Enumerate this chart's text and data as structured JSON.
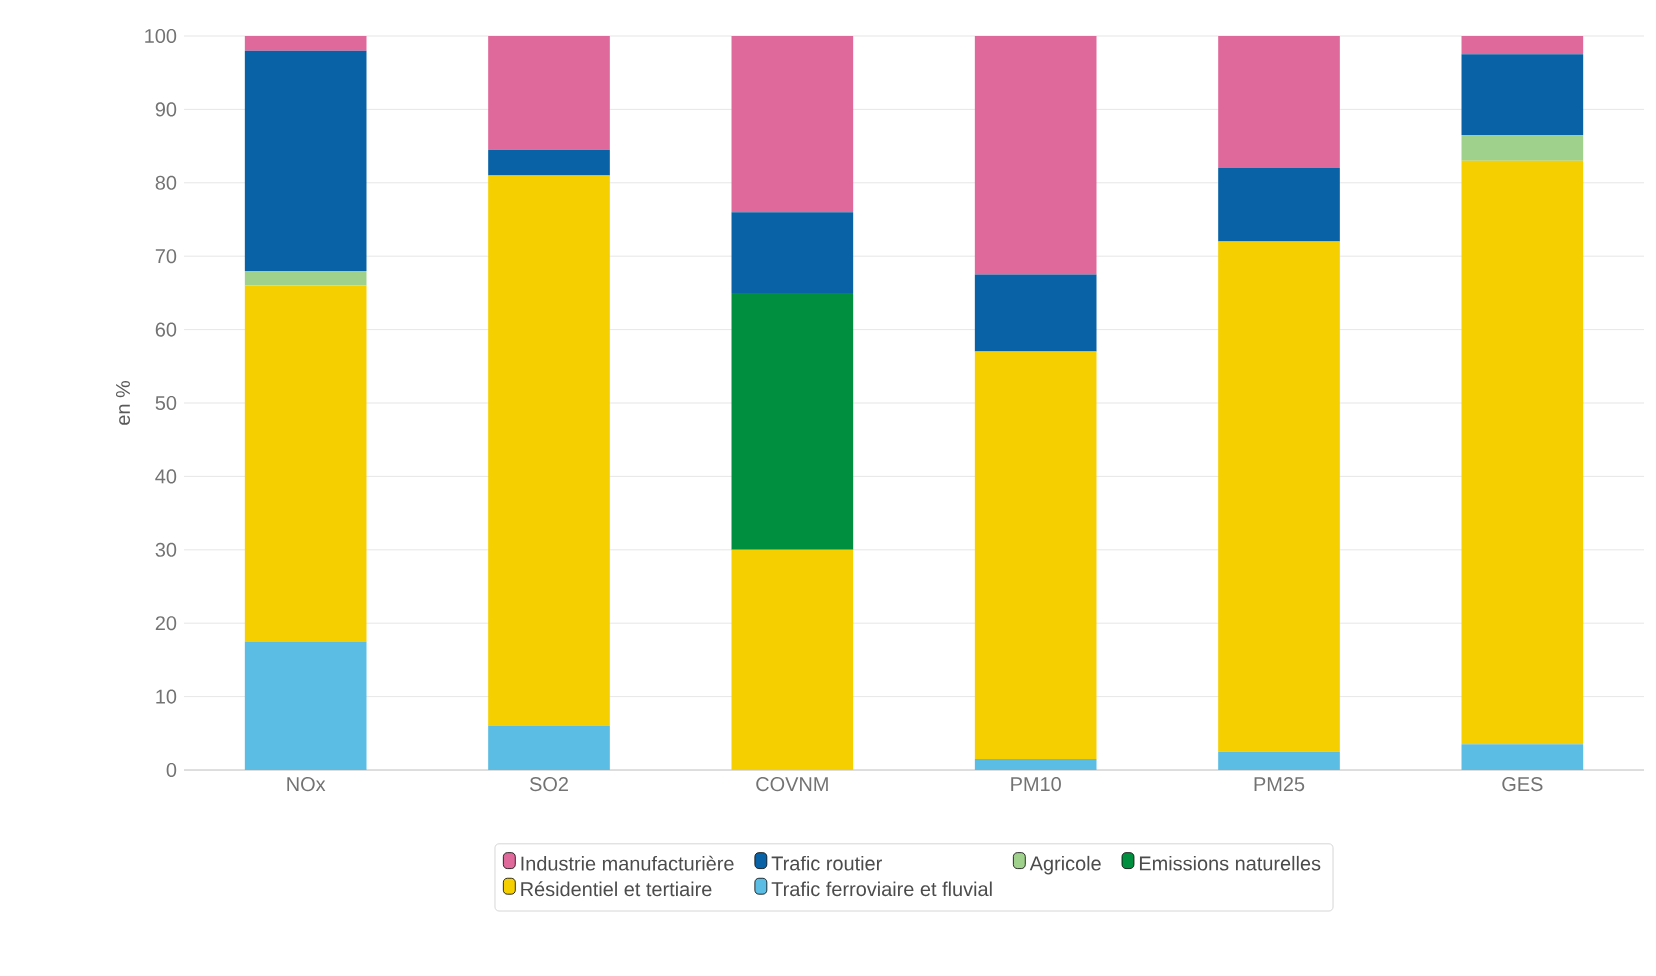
{
  "chart_data": {
    "type": "bar",
    "stacked": true,
    "ylabel": "en %",
    "categories": [
      "NOx",
      "SO2",
      "COVNM",
      "PM10",
      "PM25",
      "GES"
    ],
    "ylim": [
      0,
      100
    ],
    "yticks": [
      0,
      10,
      20,
      30,
      40,
      50,
      60,
      70,
      80,
      90,
      100
    ],
    "grid": "y",
    "legend": "bottom",
    "series": [
      {
        "name": "Trafic ferroviaire et fluvial",
        "color": "#5bbde3",
        "values": [
          17.5,
          6,
          0,
          1.5,
          2.5,
          3.5
        ]
      },
      {
        "name": "Résidentiel et tertiaire",
        "color": "#f5cf00",
        "values": [
          48.5,
          75,
          30,
          55.5,
          69.5,
          79.5
        ]
      },
      {
        "name": "Emissions naturelles",
        "color": "#008f3e",
        "values": [
          0,
          0,
          35,
          0,
          0,
          0
        ]
      },
      {
        "name": "Agricole",
        "color": "#9fd18c",
        "values": [
          2,
          0,
          0,
          0,
          0,
          3.5
        ]
      },
      {
        "name": "Trafic routier",
        "color": "#0a62a6",
        "values": [
          30,
          3.5,
          11,
          10.5,
          10,
          11
        ]
      },
      {
        "name": "Industrie manufacturière",
        "color": "#e0699b",
        "values": [
          2,
          15.5,
          24,
          32.5,
          18,
          2.5
        ]
      }
    ]
  }
}
